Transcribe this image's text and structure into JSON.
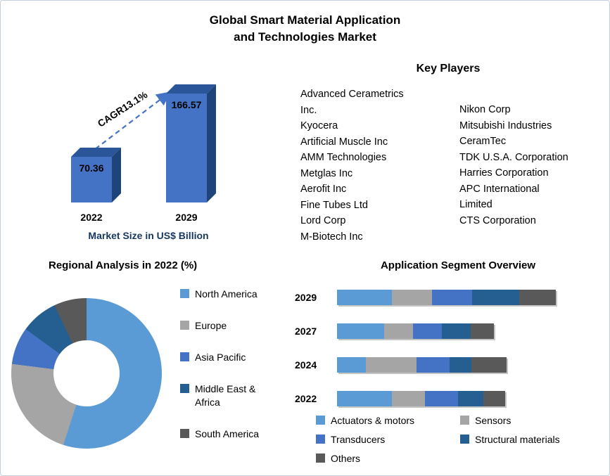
{
  "header": {
    "line1": "Global Smart Material Application",
    "line2": "and Technologies Market"
  },
  "key_players": {
    "heading": "Key Players",
    "col1": [
      "Advanced Cerametrics",
      "Inc.",
      "Kyocera",
      "Artificial Muscle Inc",
      "AMM Technologies",
      "Metglas Inc",
      "Aerofit Inc",
      "Fine Tubes Ltd",
      "Lord Corp",
      "M-Biotech Inc"
    ],
    "col2": [
      "Nikon Corp",
      "Mitsubishi Industries",
      "CeramTec",
      "TDK U.S.A. Corporation",
      "Harries Corporation",
      "APC International",
      "Limited",
      "CTS Corporation"
    ]
  },
  "colors": {
    "accent_blue": "#4472C4",
    "light_blue": "#5B9BD5",
    "gray": "#A5A5A5",
    "dark_blue": "#255E91",
    "dark_gray": "#595959",
    "caption_navy": "#17375E"
  },
  "chart_data": [
    {
      "type": "bar",
      "title": "Market Size in US$ Billion",
      "categories": [
        "2022",
        "2029"
      ],
      "values": [
        70.36,
        166.57
      ],
      "value_labels": [
        "70.36",
        "166.57"
      ],
      "annotation": "CAGR13.1%",
      "bar_color": "#4472C4",
      "ylim": [
        0,
        180
      ],
      "grid": false
    },
    {
      "type": "pie",
      "title": "Regional Analysis in 2022 (%)",
      "labels": [
        "North America",
        "Europe",
        "Asia Pacific",
        "Middle East & Africa",
        "South America"
      ],
      "values": [
        55,
        22,
        8,
        8,
        7
      ],
      "colors": [
        "#5B9BD5",
        "#A5A5A5",
        "#4472C4",
        "#255E91",
        "#595959"
      ],
      "donut": true,
      "legend_position": "right"
    },
    {
      "type": "stacked-bar",
      "title": "Application Segment Overview",
      "categories": [
        "2029",
        "2027",
        "2024",
        "2022"
      ],
      "series": [
        {
          "name": "Actuators & motors",
          "color": "#5B9BD5",
          "values": [
            75,
            65,
            40,
            75
          ]
        },
        {
          "name": "Sensors",
          "color": "#A5A5A5",
          "values": [
            55,
            40,
            70,
            45
          ]
        },
        {
          "name": "Transducers",
          "color": "#4472C4",
          "values": [
            55,
            40,
            45,
            45
          ]
        },
        {
          "name": "Structural materials",
          "color": "#255E91",
          "values": [
            65,
            40,
            30,
            35
          ]
        },
        {
          "name": "Others",
          "color": "#595959",
          "values": [
            50,
            32,
            48,
            30
          ]
        }
      ],
      "xlabel": "",
      "ylabel": "",
      "grid": false,
      "legend_position": "bottom"
    }
  ]
}
